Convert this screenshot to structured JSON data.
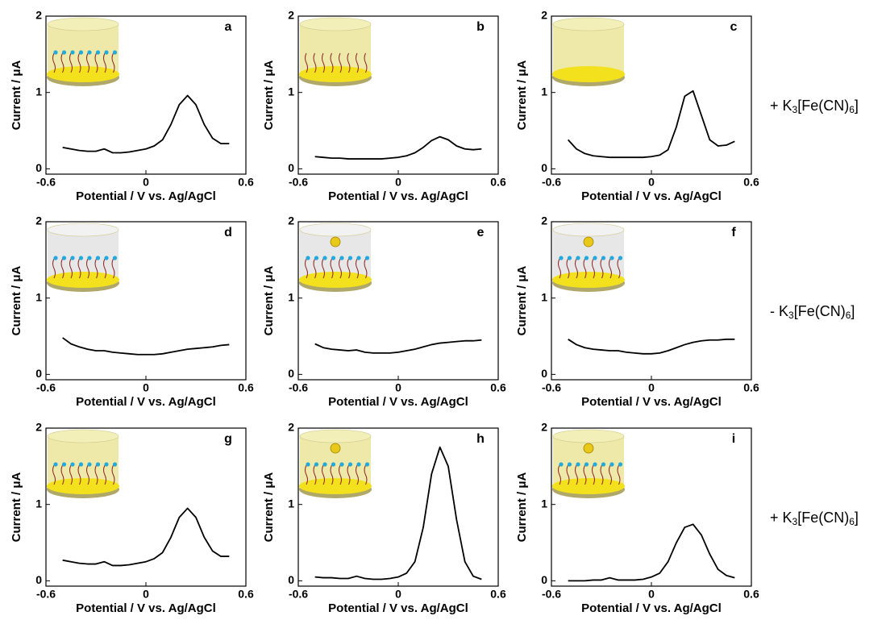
{
  "chart_data": [
    {
      "type": "line",
      "label": "a",
      "xlabel": "Potential / V vs. Ag/AgCl",
      "ylabel": "Current / μA",
      "color": "#000000",
      "x": [
        -0.5,
        -0.45,
        -0.4,
        -0.35,
        -0.3,
        -0.25,
        -0.2,
        -0.15,
        -0.1,
        -0.05,
        0,
        0.05,
        0.1,
        0.15,
        0.2,
        0.25,
        0.3,
        0.35,
        0.4,
        0.45,
        0.5
      ],
      "values": [
        0.28,
        0.26,
        0.24,
        0.23,
        0.23,
        0.26,
        0.21,
        0.21,
        0.22,
        0.24,
        0.26,
        0.3,
        0.38,
        0.58,
        0.84,
        0.96,
        0.84,
        0.58,
        0.4,
        0.33,
        0.33
      ],
      "xlim": [
        -0.6,
        0.6
      ],
      "ylim": [
        -0.07,
        2
      ],
      "xticks": [
        -0.6,
        0,
        0.6
      ],
      "yticks": [
        0,
        1,
        2
      ]
    },
    {
      "type": "line",
      "label": "b",
      "xlabel": "Potential / V vs. Ag/AgCl",
      "ylabel": "Current / μA",
      "color": "#000000",
      "x": [
        -0.5,
        -0.45,
        -0.4,
        -0.35,
        -0.3,
        -0.25,
        -0.2,
        -0.15,
        -0.1,
        -0.05,
        0,
        0.05,
        0.1,
        0.15,
        0.2,
        0.25,
        0.3,
        0.35,
        0.4,
        0.45,
        0.5
      ],
      "values": [
        0.16,
        0.15,
        0.14,
        0.14,
        0.13,
        0.13,
        0.13,
        0.13,
        0.13,
        0.14,
        0.15,
        0.17,
        0.21,
        0.28,
        0.37,
        0.42,
        0.38,
        0.3,
        0.26,
        0.25,
        0.26
      ],
      "xlim": [
        -0.6,
        0.6
      ],
      "ylim": [
        -0.07,
        2
      ],
      "xticks": [
        -0.6,
        0,
        0.6
      ],
      "yticks": [
        0,
        1,
        2
      ]
    },
    {
      "type": "line",
      "label": "c",
      "xlabel": "Potential / V vs. Ag/AgCl",
      "ylabel": "Current / μA",
      "color": "#000000",
      "x": [
        -0.5,
        -0.45,
        -0.4,
        -0.35,
        -0.3,
        -0.25,
        -0.2,
        -0.15,
        -0.1,
        -0.05,
        0,
        0.05,
        0.1,
        0.15,
        0.2,
        0.25,
        0.3,
        0.35,
        0.4,
        0.45,
        0.5
      ],
      "values": [
        0.38,
        0.26,
        0.2,
        0.17,
        0.16,
        0.15,
        0.15,
        0.15,
        0.15,
        0.15,
        0.16,
        0.18,
        0.25,
        0.55,
        0.95,
        1.02,
        0.7,
        0.38,
        0.3,
        0.31,
        0.36
      ],
      "xlim": [
        -0.6,
        0.6
      ],
      "ylim": [
        -0.07,
        2
      ],
      "xticks": [
        -0.6,
        0,
        0.6
      ],
      "yticks": [
        0,
        1,
        2
      ]
    },
    {
      "type": "line",
      "label": "d",
      "xlabel": "Potential / V vs. Ag/AgCl",
      "ylabel": "Current / μA",
      "color": "#000000",
      "x": [
        -0.5,
        -0.45,
        -0.4,
        -0.35,
        -0.3,
        -0.25,
        -0.2,
        -0.15,
        -0.1,
        -0.05,
        0,
        0.05,
        0.1,
        0.15,
        0.2,
        0.25,
        0.3,
        0.35,
        0.4,
        0.45,
        0.5
      ],
      "values": [
        0.48,
        0.4,
        0.36,
        0.33,
        0.31,
        0.31,
        0.29,
        0.28,
        0.27,
        0.26,
        0.26,
        0.26,
        0.27,
        0.29,
        0.31,
        0.33,
        0.34,
        0.35,
        0.36,
        0.38,
        0.39
      ],
      "xlim": [
        -0.6,
        0.6
      ],
      "ylim": [
        -0.07,
        2
      ],
      "xticks": [
        -0.6,
        0,
        0.6
      ],
      "yticks": [
        0,
        1,
        2
      ]
    },
    {
      "type": "line",
      "label": "e",
      "xlabel": "Potential / V vs. Ag/AgCl",
      "ylabel": "Current / μA",
      "color": "#000000",
      "x": [
        -0.5,
        -0.45,
        -0.4,
        -0.35,
        -0.3,
        -0.25,
        -0.2,
        -0.15,
        -0.1,
        -0.05,
        0,
        0.05,
        0.1,
        0.15,
        0.2,
        0.25,
        0.3,
        0.35,
        0.4,
        0.45,
        0.5
      ],
      "values": [
        0.4,
        0.35,
        0.33,
        0.32,
        0.31,
        0.32,
        0.29,
        0.28,
        0.28,
        0.28,
        0.29,
        0.31,
        0.33,
        0.36,
        0.39,
        0.41,
        0.42,
        0.43,
        0.44,
        0.44,
        0.45
      ],
      "xlim": [
        -0.6,
        0.6
      ],
      "ylim": [
        -0.07,
        2
      ],
      "xticks": [
        -0.6,
        0,
        0.6
      ],
      "yticks": [
        0,
        1,
        2
      ]
    },
    {
      "type": "line",
      "label": "f",
      "xlabel": "Potential / V vs. Ag/AgCl",
      "ylabel": "Current / μA",
      "color": "#000000",
      "x": [
        -0.5,
        -0.45,
        -0.4,
        -0.35,
        -0.3,
        -0.25,
        -0.2,
        -0.15,
        -0.1,
        -0.05,
        0,
        0.05,
        0.1,
        0.15,
        0.2,
        0.25,
        0.3,
        0.35,
        0.4,
        0.45,
        0.5
      ],
      "values": [
        0.46,
        0.39,
        0.35,
        0.33,
        0.32,
        0.31,
        0.31,
        0.29,
        0.28,
        0.27,
        0.27,
        0.28,
        0.31,
        0.35,
        0.39,
        0.42,
        0.44,
        0.45,
        0.45,
        0.46,
        0.46
      ],
      "xlim": [
        -0.6,
        0.6
      ],
      "ylim": [
        -0.07,
        2
      ],
      "xticks": [
        -0.6,
        0,
        0.6
      ],
      "yticks": [
        0,
        1,
        2
      ]
    },
    {
      "type": "line",
      "label": "g",
      "xlabel": "Potential / V vs. Ag/AgCl",
      "ylabel": "Current / μA",
      "color": "#000000",
      "x": [
        -0.5,
        -0.45,
        -0.4,
        -0.35,
        -0.3,
        -0.25,
        -0.2,
        -0.15,
        -0.1,
        -0.05,
        0,
        0.05,
        0.1,
        0.15,
        0.2,
        0.25,
        0.3,
        0.35,
        0.4,
        0.45,
        0.5
      ],
      "values": [
        0.27,
        0.25,
        0.23,
        0.22,
        0.22,
        0.25,
        0.2,
        0.2,
        0.21,
        0.23,
        0.25,
        0.29,
        0.37,
        0.57,
        0.83,
        0.95,
        0.83,
        0.57,
        0.39,
        0.32,
        0.32
      ],
      "xlim": [
        -0.6,
        0.6
      ],
      "ylim": [
        -0.07,
        2
      ],
      "xticks": [
        -0.6,
        0,
        0.6
      ],
      "yticks": [
        0,
        1,
        2
      ]
    },
    {
      "type": "line",
      "label": "h",
      "xlabel": "Potential / V vs. Ag/AgCl",
      "ylabel": "Current / μA",
      "color": "#000000",
      "x": [
        -0.5,
        -0.45,
        -0.4,
        -0.35,
        -0.3,
        -0.25,
        -0.2,
        -0.15,
        -0.1,
        -0.05,
        0,
        0.05,
        0.1,
        0.15,
        0.2,
        0.25,
        0.3,
        0.35,
        0.4,
        0.45,
        0.5
      ],
      "values": [
        0.05,
        0.04,
        0.04,
        0.03,
        0.03,
        0.06,
        0.03,
        0.02,
        0.02,
        0.03,
        0.05,
        0.1,
        0.25,
        0.7,
        1.4,
        1.75,
        1.5,
        0.8,
        0.25,
        0.06,
        0.02
      ],
      "xlim": [
        -0.6,
        0.6
      ],
      "ylim": [
        -0.07,
        2
      ],
      "xticks": [
        -0.6,
        0,
        0.6
      ],
      "yticks": [
        0,
        1,
        2
      ]
    },
    {
      "type": "line",
      "label": "i",
      "xlabel": "Potential / V vs. Ag/AgCl",
      "ylabel": "Current / μA",
      "color": "#000000",
      "x": [
        -0.5,
        -0.45,
        -0.4,
        -0.35,
        -0.3,
        -0.25,
        -0.2,
        -0.15,
        -0.1,
        -0.05,
        0,
        0.05,
        0.1,
        0.15,
        0.2,
        0.25,
        0.3,
        0.35,
        0.4,
        0.45,
        0.5
      ],
      "values": [
        0,
        0,
        0,
        0.01,
        0.01,
        0.04,
        0.01,
        0.01,
        0.01,
        0.02,
        0.05,
        0.1,
        0.25,
        0.5,
        0.7,
        0.74,
        0.6,
        0.35,
        0.15,
        0.07,
        0.04
      ],
      "xlim": [
        -0.6,
        0.6
      ],
      "ylim": [
        -0.07,
        2
      ],
      "xticks": [
        -0.6,
        0,
        0.6
      ],
      "yticks": [
        0,
        1,
        2
      ]
    }
  ],
  "row_labels": [
    "+ K3[Fe(CN)6]",
    "- K3[Fe(CN)6]",
    "+ K3[Fe(CN)6]"
  ]
}
